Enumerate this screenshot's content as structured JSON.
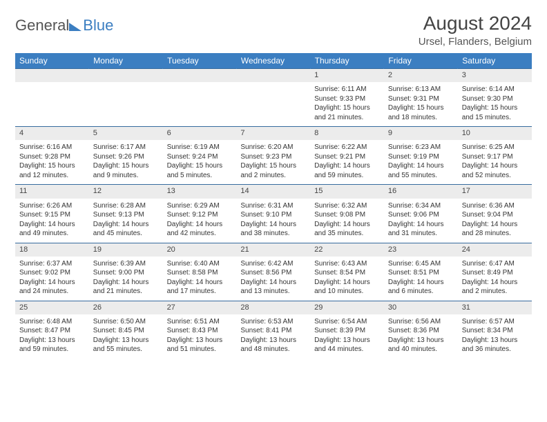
{
  "brand": {
    "part1": "General",
    "part2": "Blue"
  },
  "title": "August 2024",
  "location": "Ursel, Flanders, Belgium",
  "colors": {
    "header_bg": "#3b7ec1",
    "header_text": "#ffffff",
    "daynum_bg": "#ececec",
    "border_top": "#356a9e",
    "page_bg": "#ffffff",
    "text": "#333333"
  },
  "weekdays": [
    "Sunday",
    "Monday",
    "Tuesday",
    "Wednesday",
    "Thursday",
    "Friday",
    "Saturday"
  ],
  "weeks": [
    [
      null,
      null,
      null,
      null,
      {
        "n": "1",
        "sr": "6:11 AM",
        "ss": "9:33 PM",
        "dl": "15 hours and 21 minutes."
      },
      {
        "n": "2",
        "sr": "6:13 AM",
        "ss": "9:31 PM",
        "dl": "15 hours and 18 minutes."
      },
      {
        "n": "3",
        "sr": "6:14 AM",
        "ss": "9:30 PM",
        "dl": "15 hours and 15 minutes."
      }
    ],
    [
      {
        "n": "4",
        "sr": "6:16 AM",
        "ss": "9:28 PM",
        "dl": "15 hours and 12 minutes."
      },
      {
        "n": "5",
        "sr": "6:17 AM",
        "ss": "9:26 PM",
        "dl": "15 hours and 9 minutes."
      },
      {
        "n": "6",
        "sr": "6:19 AM",
        "ss": "9:24 PM",
        "dl": "15 hours and 5 minutes."
      },
      {
        "n": "7",
        "sr": "6:20 AM",
        "ss": "9:23 PM",
        "dl": "15 hours and 2 minutes."
      },
      {
        "n": "8",
        "sr": "6:22 AM",
        "ss": "9:21 PM",
        "dl": "14 hours and 59 minutes."
      },
      {
        "n": "9",
        "sr": "6:23 AM",
        "ss": "9:19 PM",
        "dl": "14 hours and 55 minutes."
      },
      {
        "n": "10",
        "sr": "6:25 AM",
        "ss": "9:17 PM",
        "dl": "14 hours and 52 minutes."
      }
    ],
    [
      {
        "n": "11",
        "sr": "6:26 AM",
        "ss": "9:15 PM",
        "dl": "14 hours and 49 minutes."
      },
      {
        "n": "12",
        "sr": "6:28 AM",
        "ss": "9:13 PM",
        "dl": "14 hours and 45 minutes."
      },
      {
        "n": "13",
        "sr": "6:29 AM",
        "ss": "9:12 PM",
        "dl": "14 hours and 42 minutes."
      },
      {
        "n": "14",
        "sr": "6:31 AM",
        "ss": "9:10 PM",
        "dl": "14 hours and 38 minutes."
      },
      {
        "n": "15",
        "sr": "6:32 AM",
        "ss": "9:08 PM",
        "dl": "14 hours and 35 minutes."
      },
      {
        "n": "16",
        "sr": "6:34 AM",
        "ss": "9:06 PM",
        "dl": "14 hours and 31 minutes."
      },
      {
        "n": "17",
        "sr": "6:36 AM",
        "ss": "9:04 PM",
        "dl": "14 hours and 28 minutes."
      }
    ],
    [
      {
        "n": "18",
        "sr": "6:37 AM",
        "ss": "9:02 PM",
        "dl": "14 hours and 24 minutes."
      },
      {
        "n": "19",
        "sr": "6:39 AM",
        "ss": "9:00 PM",
        "dl": "14 hours and 21 minutes."
      },
      {
        "n": "20",
        "sr": "6:40 AM",
        "ss": "8:58 PM",
        "dl": "14 hours and 17 minutes."
      },
      {
        "n": "21",
        "sr": "6:42 AM",
        "ss": "8:56 PM",
        "dl": "14 hours and 13 minutes."
      },
      {
        "n": "22",
        "sr": "6:43 AM",
        "ss": "8:54 PM",
        "dl": "14 hours and 10 minutes."
      },
      {
        "n": "23",
        "sr": "6:45 AM",
        "ss": "8:51 PM",
        "dl": "14 hours and 6 minutes."
      },
      {
        "n": "24",
        "sr": "6:47 AM",
        "ss": "8:49 PM",
        "dl": "14 hours and 2 minutes."
      }
    ],
    [
      {
        "n": "25",
        "sr": "6:48 AM",
        "ss": "8:47 PM",
        "dl": "13 hours and 59 minutes."
      },
      {
        "n": "26",
        "sr": "6:50 AM",
        "ss": "8:45 PM",
        "dl": "13 hours and 55 minutes."
      },
      {
        "n": "27",
        "sr": "6:51 AM",
        "ss": "8:43 PM",
        "dl": "13 hours and 51 minutes."
      },
      {
        "n": "28",
        "sr": "6:53 AM",
        "ss": "8:41 PM",
        "dl": "13 hours and 48 minutes."
      },
      {
        "n": "29",
        "sr": "6:54 AM",
        "ss": "8:39 PM",
        "dl": "13 hours and 44 minutes."
      },
      {
        "n": "30",
        "sr": "6:56 AM",
        "ss": "8:36 PM",
        "dl": "13 hours and 40 minutes."
      },
      {
        "n": "31",
        "sr": "6:57 AM",
        "ss": "8:34 PM",
        "dl": "13 hours and 36 minutes."
      }
    ]
  ],
  "labels": {
    "sunrise": "Sunrise:",
    "sunset": "Sunset:",
    "daylight": "Daylight:"
  }
}
